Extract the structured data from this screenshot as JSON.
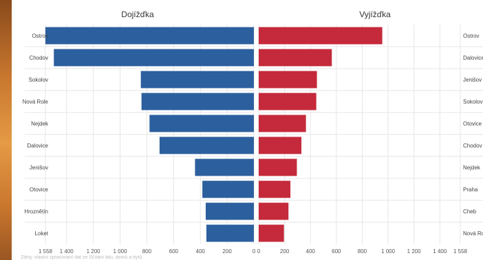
{
  "chart_data": [
    {
      "type": "bar",
      "orientation": "horizontal",
      "direction": "reversed",
      "title": "Dojížďka",
      "categories": [
        "Ostrov",
        "Chodov",
        "Sokolov",
        "Nová Role",
        "Nejdek",
        "Dalovice",
        "Jenišov",
        "Otovice",
        "Hroznětín",
        "Loket"
      ],
      "values": [
        1558,
        1495,
        845,
        840,
        780,
        705,
        440,
        385,
        360,
        355
      ],
      "xlim": [
        0,
        1558
      ],
      "xticks": [
        "1 558",
        "1 400",
        "1 200",
        "1 000",
        "800",
        "600",
        "400",
        "200",
        "0"
      ],
      "color": "#2c5f9e",
      "grid": true
    },
    {
      "type": "bar",
      "orientation": "horizontal",
      "title": "Vyjížďka",
      "categories": [
        "Ostrov",
        "Dalovice",
        "Jenišov",
        "Sokolov",
        "Otovice",
        "Chodov",
        "Nejdek",
        "Praha",
        "Cheb",
        "Nová Role"
      ],
      "values": [
        955,
        565,
        450,
        445,
        365,
        330,
        295,
        245,
        230,
        195
      ],
      "xlim": [
        0,
        1558
      ],
      "xticks": [
        "0",
        "200",
        "400",
        "600",
        "800",
        "1 000",
        "1 200",
        "1 400",
        "1 558"
      ],
      "color": "#c42a3b",
      "grid": true
    }
  ],
  "footnote": "Zdroj: vlastní zpracování dat ze Sčítání lidu, domů a bytů"
}
